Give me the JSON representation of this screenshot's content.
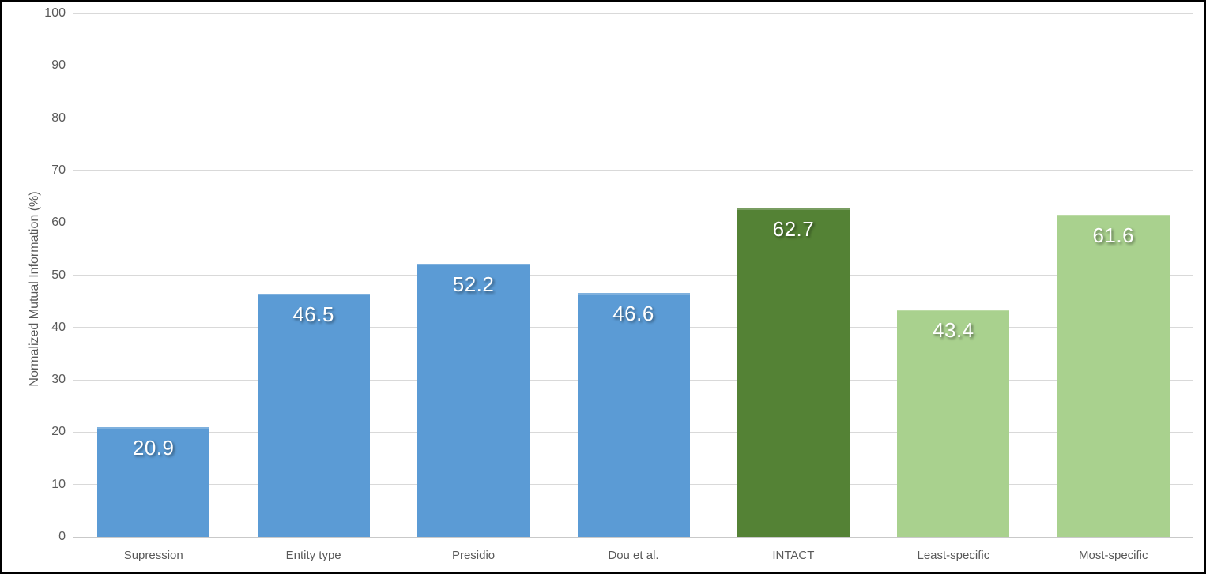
{
  "chart_data": {
    "type": "bar",
    "title": "",
    "xlabel": "",
    "ylabel": "Normalized Mutual Information (%)",
    "categories": [
      "Supression",
      "Entity type",
      "Presidio",
      "Dou et al.",
      "INTACT",
      "Least-specific",
      "Most-specific"
    ],
    "values": [
      20.9,
      46.5,
      52.2,
      46.6,
      62.7,
      43.4,
      61.6
    ],
    "value_labels": [
      "20.9",
      "46.5",
      "52.2",
      "46.6",
      "62.7",
      "43.4",
      "61.6"
    ],
    "bar_colors": [
      "#5B9BD5",
      "#5B9BD5",
      "#5B9BD5",
      "#5B9BD5",
      "#548235",
      "#A9D18E",
      "#A9D18E"
    ],
    "ylim": [
      0,
      100
    ],
    "ytick_step": 10,
    "ytick_labels": [
      "0",
      "10",
      "20",
      "30",
      "40",
      "50",
      "60",
      "70",
      "80",
      "90",
      "100"
    ],
    "grid": "horizontal",
    "legend_position": "none",
    "colors": {
      "data_label_text": "#FFFFFF",
      "axis_text": "#595959",
      "gridline": "#D9D9D9",
      "zero_line": "#C9C9C9",
      "background": "#FFFFFF",
      "frame_border": "#000000"
    }
  }
}
